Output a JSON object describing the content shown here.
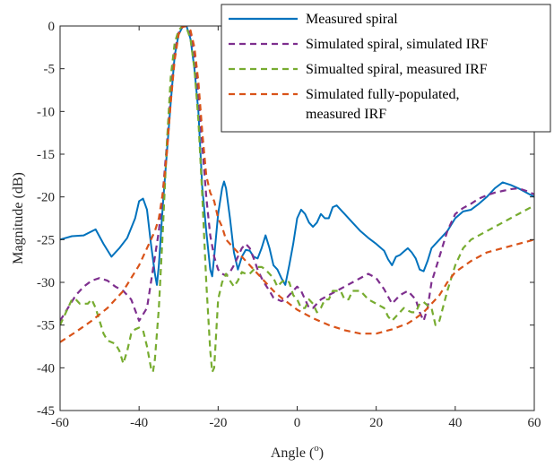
{
  "chart_data": {
    "type": "line",
    "xlabel": "Angle",
    "xlabel_unit_base": "(",
    "xlabel_unit_sup": "o",
    "xlabel_unit_end": ")",
    "ylabel": "Magnitude (dB)",
    "xlim": [
      -60,
      60
    ],
    "ylim": [
      -45,
      0
    ],
    "xticks": [
      "-60",
      "-40",
      "-20",
      "0",
      "20",
      "40",
      "60"
    ],
    "yticks": [
      "0",
      "-5",
      "-10",
      "-15",
      "-20",
      "-25",
      "-30",
      "-35",
      "-40",
      "-45"
    ],
    "grid": false,
    "legend_position": "top-right",
    "series": [
      {
        "name": "Measured spiral",
        "color": "#0072BD",
        "dash": "solid",
        "x": [
          -60,
          -57,
          -54,
          -51,
          -49,
          -47,
          -45,
          -43,
          -41,
          -40,
          -39,
          -38,
          -37,
          -36,
          -35.5,
          -35,
          -34,
          -33,
          -32,
          -31,
          -30,
          -29,
          -28,
          -27,
          -26,
          -25,
          -24,
          -23,
          -22,
          -21.5,
          -21,
          -20,
          -19,
          -18.5,
          -18,
          -17,
          -16,
          -15,
          -14,
          -13,
          -12,
          -11,
          -10,
          -9,
          -8,
          -7,
          -6,
          -5,
          -4,
          -3,
          -2,
          -1,
          0,
          1,
          2,
          3,
          4,
          5,
          6,
          7,
          8,
          9,
          10,
          12,
          14,
          16,
          18,
          20,
          22,
          23,
          24,
          25,
          26,
          27,
          28,
          29,
          30,
          31,
          32,
          33,
          34,
          35,
          36,
          38,
          40,
          42,
          44,
          46,
          48,
          50,
          52,
          54,
          56,
          58,
          60
        ],
        "y": [
          -25.0,
          -24.6,
          -24.5,
          -23.8,
          -25.5,
          -27.0,
          -26.0,
          -24.8,
          -22.5,
          -20.5,
          -20.2,
          -21.5,
          -25.5,
          -29.0,
          -30.3,
          -28.0,
          -21.0,
          -15.0,
          -9.0,
          -3.5,
          -1.0,
          -0.1,
          0.0,
          -1.5,
          -5.0,
          -10.0,
          -19.0,
          -24.0,
          -28.5,
          -29.3,
          -27.0,
          -22.0,
          -19.0,
          -18.2,
          -19.0,
          -22.5,
          -26.5,
          -28.5,
          -27.0,
          -26.2,
          -26.3,
          -27.0,
          -27.2,
          -26.0,
          -24.5,
          -26.0,
          -28.0,
          -28.5,
          -29.5,
          -30.3,
          -28.0,
          -25.5,
          -22.5,
          -21.5,
          -22.0,
          -23.0,
          -23.5,
          -23.0,
          -22.0,
          -22.5,
          -22.5,
          -21.2,
          -21.0,
          -22.0,
          -23.0,
          -24.0,
          -24.8,
          -25.5,
          -26.3,
          -27.3,
          -28.0,
          -27.0,
          -26.8,
          -26.4,
          -26.0,
          -26.5,
          -27.2,
          -28.5,
          -28.7,
          -27.5,
          -26.0,
          -25.5,
          -25.0,
          -24.0,
          -22.5,
          -21.7,
          -21.5,
          -20.8,
          -20.0,
          -19.0,
          -18.3,
          -18.6,
          -19.0,
          -19.5,
          -20.0
        ]
      },
      {
        "name": "Simulated spiral, simulated IRF",
        "color": "#7E2F8E",
        "dash": "dashed",
        "x": [
          -60,
          -58,
          -56,
          -54,
          -52,
          -50,
          -48,
          -46,
          -44,
          -42,
          -40,
          -38,
          -36.5,
          -35,
          -34,
          -33,
          -32,
          -31,
          -30,
          -29,
          -28,
          -27,
          -26,
          -25,
          -24,
          -23,
          -22,
          -21,
          -20,
          -19,
          -18,
          -17,
          -16,
          -15,
          -14,
          -13,
          -12,
          -11,
          -10,
          -9,
          -8,
          -7,
          -6,
          -5,
          -4,
          -3,
          -2,
          -1,
          0,
          1,
          2,
          3,
          4,
          6,
          8,
          10,
          12,
          14,
          16,
          18,
          20,
          22,
          24,
          26,
          28,
          30,
          31,
          32,
          33,
          34,
          36,
          38,
          40,
          42,
          44,
          46,
          48,
          50,
          52,
          54,
          56,
          58,
          60
        ],
        "y": [
          -34.5,
          -33.0,
          -31.5,
          -30.5,
          -29.8,
          -29.5,
          -29.8,
          -30.5,
          -31.0,
          -32.0,
          -34.5,
          -33.0,
          -28.5,
          -24.0,
          -19.5,
          -14.0,
          -8.0,
          -3.0,
          -0.8,
          -0.1,
          0.0,
          -0.8,
          -3.5,
          -8.0,
          -14.0,
          -20.0,
          -24.5,
          -27.0,
          -28.5,
          -29.0,
          -29.2,
          -28.8,
          -28.0,
          -27.0,
          -26.0,
          -25.5,
          -26.0,
          -27.2,
          -28.5,
          -29.5,
          -30.3,
          -31.0,
          -31.8,
          -32.0,
          -32.2,
          -32.0,
          -31.5,
          -31.0,
          -30.5,
          -31.0,
          -32.0,
          -33.0,
          -33.0,
          -32.0,
          -31.5,
          -31.0,
          -30.5,
          -30.0,
          -29.5,
          -29.0,
          -29.5,
          -30.8,
          -32.5,
          -31.5,
          -31.0,
          -32.0,
          -33.5,
          -34.5,
          -33.0,
          -30.0,
          -27.0,
          -24.0,
          -22.0,
          -21.3,
          -20.8,
          -20.2,
          -19.8,
          -19.5,
          -19.3,
          -19.1,
          -19.0,
          -19.3,
          -19.7
        ]
      },
      {
        "name": "Simualted spiral, measured IRF",
        "color": "#77AC30",
        "dash": "dashed",
        "x": [
          -60,
          -58,
          -57,
          -56,
          -55,
          -54,
          -53,
          -52,
          -51,
          -50,
          -49,
          -48,
          -47,
          -46,
          -45,
          -44,
          -43,
          -42,
          -41,
          -40,
          -39,
          -38,
          -37,
          -36.5,
          -36,
          -35,
          -34,
          -33,
          -32,
          -31,
          -30,
          -29,
          -28,
          -27,
          -26,
          -25,
          -24,
          -23,
          -22,
          -21.5,
          -21,
          -20.5,
          -20,
          -19,
          -18,
          -17,
          -16,
          -15,
          -14,
          -13,
          -12,
          -11,
          -10,
          -9,
          -8,
          -7,
          -6,
          -5,
          -4,
          -3,
          -2,
          -1,
          0,
          1,
          2,
          3,
          4,
          5,
          6,
          7,
          8,
          9,
          10,
          11,
          12,
          13,
          14,
          16,
          18,
          20,
          22,
          23,
          24,
          25,
          26,
          27,
          28,
          29,
          30,
          31,
          32,
          33,
          34,
          35,
          36,
          38,
          40,
          42,
          44,
          46,
          48,
          50,
          52,
          54,
          56,
          58,
          60
        ],
        "y": [
          -35.0,
          -33.0,
          -32.0,
          -32.0,
          -32.5,
          -32.5,
          -32.5,
          -32.0,
          -33.0,
          -34.5,
          -36.0,
          -36.8,
          -37.0,
          -37.2,
          -38.0,
          -39.5,
          -38.0,
          -36.0,
          -35.5,
          -35.3,
          -35.6,
          -37.5,
          -40.0,
          -40.5,
          -39.0,
          -33.0,
          -24.0,
          -14.0,
          -6.0,
          -2.0,
          -0.5,
          0.0,
          -0.2,
          -1.5,
          -5.0,
          -11.0,
          -20.0,
          -30.0,
          -38.0,
          -40.5,
          -40.0,
          -36.0,
          -32.0,
          -30.0,
          -29.0,
          -29.8,
          -30.5,
          -29.8,
          -28.8,
          -29.0,
          -29.0,
          -28.5,
          -28.2,
          -28.2,
          -28.5,
          -29.0,
          -29.5,
          -30.5,
          -30.0,
          -29.7,
          -30.0,
          -31.5,
          -32.0,
          -33.0,
          -33.0,
          -32.0,
          -32.5,
          -33.5,
          -33.0,
          -32.0,
          -32.0,
          -31.0,
          -31.0,
          -31.0,
          -32.0,
          -32.0,
          -31.0,
          -31.0,
          -32.0,
          -32.5,
          -33.0,
          -34.0,
          -34.5,
          -34.0,
          -33.5,
          -33.0,
          -33.3,
          -33.5,
          -33.5,
          -32.5,
          -32.3,
          -32.7,
          -33.0,
          -35.0,
          -34.5,
          -31.0,
          -28.0,
          -26.0,
          -25.0,
          -24.5,
          -24.0,
          -23.5,
          -23.0,
          -22.5,
          -22.0,
          -21.5,
          -21.0
        ]
      },
      {
        "name": "Simulated fully-populated, measured IRF",
        "name_line1": "Simulated fully-populated,",
        "name_line2": "measured IRF",
        "color": "#D95319",
        "dash": "dashed",
        "x": [
          -60,
          -56,
          -52,
          -48,
          -44,
          -42,
          -40,
          -38,
          -36,
          -35,
          -34,
          -33,
          -32,
          -31,
          -30,
          -29,
          -28,
          -27,
          -26,
          -25,
          -24,
          -23,
          -22,
          -21,
          -20,
          -19,
          -18,
          -17,
          -16,
          -14,
          -12,
          -10,
          -8,
          -6,
          -4,
          -2,
          0,
          4,
          8,
          12,
          16,
          20,
          24,
          28,
          30,
          32,
          34,
          36,
          38,
          40,
          44,
          48,
          52,
          56,
          60
        ],
        "y": [
          -37.0,
          -35.8,
          -34.5,
          -33.0,
          -31.0,
          -29.5,
          -28.0,
          -26.0,
          -24.0,
          -22.5,
          -19.5,
          -15.0,
          -9.0,
          -4.0,
          -1.0,
          -0.1,
          0.0,
          -0.5,
          -2.5,
          -6.5,
          -12.5,
          -17.5,
          -19.5,
          -20.5,
          -22.5,
          -23.5,
          -25.0,
          -25.5,
          -26.0,
          -27.0,
          -28.0,
          -29.0,
          -30.0,
          -31.0,
          -31.8,
          -32.5,
          -33.2,
          -34.2,
          -35.0,
          -35.6,
          -36.0,
          -36.0,
          -35.5,
          -34.8,
          -34.2,
          -33.5,
          -32.5,
          -31.5,
          -30.0,
          -28.8,
          -27.5,
          -26.5,
          -26.0,
          -25.5,
          -25.0
        ]
      }
    ]
  }
}
